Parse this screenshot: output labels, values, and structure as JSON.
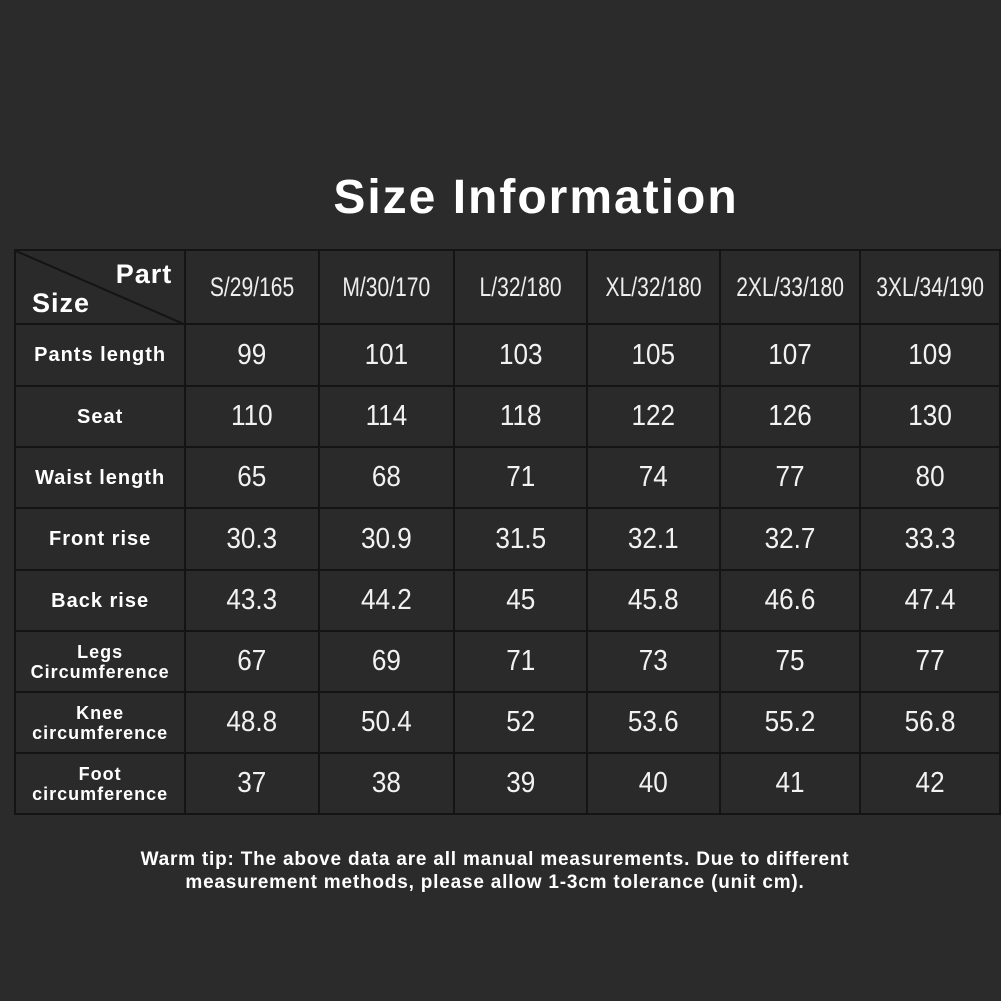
{
  "title": "Size Information",
  "table": {
    "corner_part": "Part",
    "corner_size": "Size",
    "columns": [
      "S/29/165",
      "M/30/170",
      "L/32/180",
      "XL/32/180",
      "2XL/33/180",
      "3XL/34/190"
    ],
    "rows": [
      {
        "label": [
          "Pants length"
        ],
        "values": [
          "99",
          "101",
          "103",
          "105",
          "107",
          "109"
        ]
      },
      {
        "label": [
          "Seat"
        ],
        "values": [
          "110",
          "114",
          "118",
          "122",
          "126",
          "130"
        ]
      },
      {
        "label": [
          "Waist length"
        ],
        "values": [
          "65",
          "68",
          "71",
          "74",
          "77",
          "80"
        ]
      },
      {
        "label": [
          "Front rise"
        ],
        "values": [
          "30.3",
          "30.9",
          "31.5",
          "32.1",
          "32.7",
          "33.3"
        ]
      },
      {
        "label": [
          "Back rise"
        ],
        "values": [
          "43.3",
          "44.2",
          "45",
          "45.8",
          "46.6",
          "47.4"
        ]
      },
      {
        "label": [
          "Legs",
          "Circumference"
        ],
        "values": [
          "67",
          "69",
          "71",
          "73",
          "75",
          "77"
        ]
      },
      {
        "label": [
          "Knee",
          "circumference"
        ],
        "values": [
          "48.8",
          "50.4",
          "52",
          "53.6",
          "55.2",
          "56.8"
        ]
      },
      {
        "label": [
          "Foot",
          "circumference"
        ],
        "values": [
          "37",
          "38",
          "39",
          "40",
          "41",
          "42"
        ]
      }
    ]
  },
  "tip": [
    "Warm tip: The above data are all manual measurements. Due to different",
    "measurement methods, please allow 1-3cm tolerance (unit cm)."
  ]
}
